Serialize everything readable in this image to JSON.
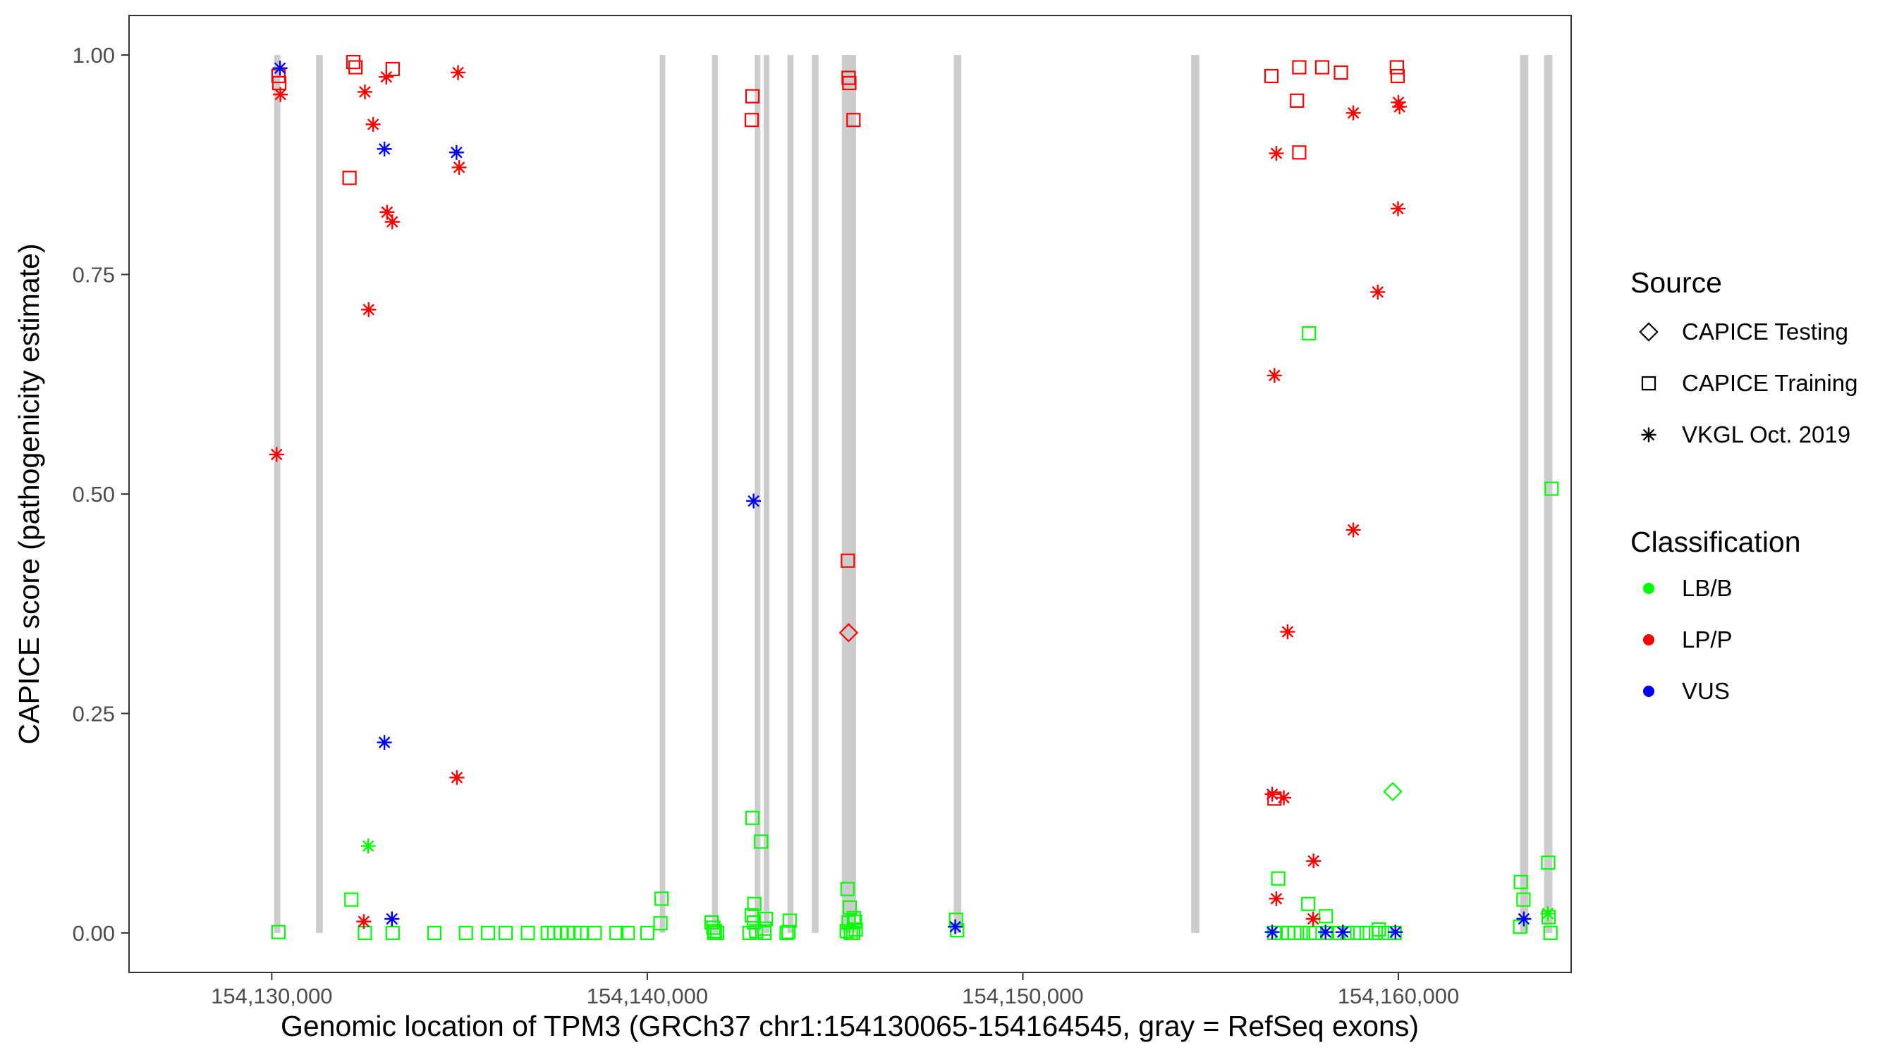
{
  "chart_data": {
    "type": "scatter",
    "title": "",
    "xlabel": "Genomic location of TPM3 (GRCh37 chr1:154130065-154164545, gray = RefSeq exons)",
    "ylabel": "CAPICE score (pathogenicity estimate)",
    "xlim": [
      154126200,
      154164600
    ],
    "ylim": [
      -0.045,
      1.045
    ],
    "x_ticks": [
      154130000,
      154140000,
      154150000,
      154160000
    ],
    "x_tick_labels": [
      "154,130,000",
      "154,140,000",
      "154,150,000",
      "154,160,000"
    ],
    "y_ticks": [
      0.0,
      0.25,
      0.5,
      0.75,
      1.0
    ],
    "y_tick_labels": [
      "0.00",
      "0.25",
      "0.50",
      "0.75",
      "1.00"
    ],
    "grid": false,
    "exon_color": "#cccccc",
    "exons": [
      [
        154130065,
        154130230
      ],
      [
        154131180,
        154131360
      ],
      [
        154140330,
        154140440
      ],
      [
        154141720,
        154141880
      ],
      [
        154142860,
        154142990
      ],
      [
        154143100,
        154143230
      ],
      [
        154143730,
        154143890
      ],
      [
        154144380,
        154144560
      ],
      [
        154145180,
        154145560
      ],
      [
        154148160,
        154148360
      ],
      [
        154154480,
        154154700
      ],
      [
        154163240,
        154163460
      ],
      [
        154163880,
        154164100
      ]
    ],
    "legend": {
      "placement": "right",
      "source_title": "Source",
      "source_items": [
        {
          "label": "CAPICE Testing",
          "shape": "diamond"
        },
        {
          "label": "CAPICE Training",
          "shape": "square"
        },
        {
          "label": "VKGL Oct. 2019",
          "shape": "asterisk"
        }
      ],
      "class_title": "Classification",
      "class_items": [
        {
          "label": "LB/B",
          "color": "#00ff00"
        },
        {
          "label": "LP/P",
          "color": "#ff0000"
        },
        {
          "label": "VUS",
          "color": "#0000ff"
        }
      ]
    },
    "series": [
      {
        "source": "CAPICE Testing",
        "classification": "LP/P",
        "shape": "diamond",
        "color": "#ff0000",
        "points": [
          [
            154145360,
            0.342
          ]
        ]
      },
      {
        "source": "CAPICE Testing",
        "classification": "LB/B",
        "shape": "diamond",
        "color": "#00ff00",
        "points": [
          [
            154159850,
            0.161
          ]
        ]
      },
      {
        "source": "CAPICE Training",
        "classification": "LP/P",
        "shape": "square",
        "color": "#ff0000",
        "points": [
          [
            154130180,
            0.976
          ],
          [
            154130200,
            0.968
          ],
          [
            154132170,
            0.992
          ],
          [
            154132230,
            0.986
          ],
          [
            154132070,
            0.86
          ],
          [
            154133220,
            0.984
          ],
          [
            154142800,
            0.953
          ],
          [
            154142780,
            0.926
          ],
          [
            154145360,
            0.974
          ],
          [
            154145380,
            0.968
          ],
          [
            154145490,
            0.926
          ],
          [
            154145340,
            0.424
          ],
          [
            154156620,
            0.976
          ],
          [
            154157360,
            0.986
          ],
          [
            154157970,
            0.986
          ],
          [
            154158470,
            0.98
          ],
          [
            154159960,
            0.986
          ],
          [
            154159980,
            0.976
          ],
          [
            154157300,
            0.948
          ],
          [
            154157360,
            0.889
          ],
          [
            154156700,
            0.153
          ]
        ]
      },
      {
        "source": "CAPICE Training",
        "classification": "LB/B",
        "shape": "square",
        "color": "#00ff00",
        "points": [
          [
            154130180,
            0.001
          ],
          [
            154132120,
            0.038
          ],
          [
            154132480,
            0.0
          ],
          [
            154133220,
            0.0
          ],
          [
            154134330,
            0.0
          ],
          [
            154135170,
            0.0
          ],
          [
            154135760,
            0.0
          ],
          [
            154136230,
            0.0
          ],
          [
            154136820,
            0.0
          ],
          [
            154137350,
            0.0
          ],
          [
            154137520,
            0.0
          ],
          [
            154137700,
            0.0
          ],
          [
            154137880,
            0.0
          ],
          [
            154138060,
            0.0
          ],
          [
            154138240,
            0.0
          ],
          [
            154138600,
            0.0
          ],
          [
            154139180,
            0.0
          ],
          [
            154139480,
            0.0
          ],
          [
            154140000,
            0.0
          ],
          [
            154140380,
            0.039
          ],
          [
            154140350,
            0.011
          ],
          [
            154141710,
            0.012
          ],
          [
            154141760,
            0.006
          ],
          [
            154141800,
            0.002
          ],
          [
            154141780,
            0.0
          ],
          [
            154141860,
            0.0
          ],
          [
            154142800,
            0.131
          ],
          [
            154143030,
            0.104
          ],
          [
            154142850,
            0.033
          ],
          [
            154142780,
            0.02
          ],
          [
            154142840,
            0.012
          ],
          [
            154142900,
            0.002
          ],
          [
            154143120,
            0.0
          ],
          [
            154143160,
            0.016
          ],
          [
            154142720,
            0.0
          ],
          [
            154143120,
            0.005
          ],
          [
            154143710,
            0.0
          ],
          [
            154143790,
            0.014
          ],
          [
            154143760,
            0.001
          ],
          [
            154145330,
            0.05
          ],
          [
            154145390,
            0.029
          ],
          [
            154145360,
            0.012
          ],
          [
            154145310,
            0.002
          ],
          [
            154145420,
            0.0
          ],
          [
            154145500,
            0.017
          ],
          [
            154145530,
            0.013
          ],
          [
            154145550,
            0.004
          ],
          [
            154145480,
            0.0
          ],
          [
            154148220,
            0.015
          ],
          [
            154148250,
            0.003
          ],
          [
            154156800,
            0.062
          ],
          [
            154157620,
            0.683
          ],
          [
            154157600,
            0.033
          ],
          [
            154158070,
            0.019
          ],
          [
            154156700,
            0.0
          ],
          [
            154156900,
            0.0
          ],
          [
            154157070,
            0.0
          ],
          [
            154157230,
            0.0
          ],
          [
            154157400,
            0.0
          ],
          [
            154157640,
            0.0
          ],
          [
            154157800,
            0.0
          ],
          [
            154158100,
            0.0
          ],
          [
            154158400,
            0.0
          ],
          [
            154158650,
            0.0
          ],
          [
            154158900,
            0.0
          ],
          [
            154159150,
            0.0
          ],
          [
            154159400,
            0.0
          ],
          [
            154159650,
            0.0
          ],
          [
            154159900,
            0.0
          ],
          [
            154159480,
            0.004
          ],
          [
            154163260,
            0.058
          ],
          [
            154163330,
            0.038
          ],
          [
            154163240,
            0.007
          ],
          [
            154163990,
            0.08
          ],
          [
            154164080,
            0.506
          ],
          [
            154164050,
            0.0
          ],
          [
            154164000,
            0.018
          ]
        ]
      },
      {
        "source": "VKGL Oct. 2019",
        "classification": "LP/P",
        "shape": "asterisk",
        "color": "#ff0000",
        "points": [
          [
            154130230,
            0.955
          ],
          [
            154130130,
            0.545
          ],
          [
            154132480,
            0.958
          ],
          [
            154132700,
            0.921
          ],
          [
            154133050,
            0.975
          ],
          [
            154134960,
            0.98
          ],
          [
            154134990,
            0.872
          ],
          [
            154133070,
            0.821
          ],
          [
            154133210,
            0.81
          ],
          [
            154132580,
            0.71
          ],
          [
            154134930,
            0.177
          ],
          [
            154132450,
            0.013
          ],
          [
            154156750,
            0.888
          ],
          [
            154156700,
            0.635
          ],
          [
            154157050,
            0.343
          ],
          [
            154156640,
            0.158
          ],
          [
            154156950,
            0.154
          ],
          [
            154156750,
            0.039
          ],
          [
            154157740,
            0.082
          ],
          [
            154157730,
            0.016
          ],
          [
            154158800,
            0.459
          ],
          [
            154159450,
            0.73
          ],
          [
            154159990,
            0.825
          ],
          [
            154160000,
            0.946
          ],
          [
            154160030,
            0.941
          ],
          [
            154158800,
            0.934
          ]
        ]
      },
      {
        "source": "VKGL Oct. 2019",
        "classification": "LB/B",
        "shape": "asterisk",
        "color": "#00ff00",
        "points": [
          [
            154132570,
            0.099
          ],
          [
            154163980,
            0.022
          ]
        ]
      },
      {
        "source": "VKGL Oct. 2019",
        "classification": "VUS",
        "shape": "asterisk",
        "color": "#0000ff",
        "points": [
          [
            154130220,
            0.985
          ],
          [
            154133000,
            0.893
          ],
          [
            154134920,
            0.889
          ],
          [
            154133000,
            0.217
          ],
          [
            154133200,
            0.016
          ],
          [
            154142830,
            0.492
          ],
          [
            154148200,
            0.007
          ],
          [
            154156640,
            0.001
          ],
          [
            154158060,
            0.001
          ],
          [
            154158520,
            0.001
          ],
          [
            154159920,
            0.001
          ],
          [
            154163340,
            0.016
          ]
        ]
      }
    ]
  }
}
